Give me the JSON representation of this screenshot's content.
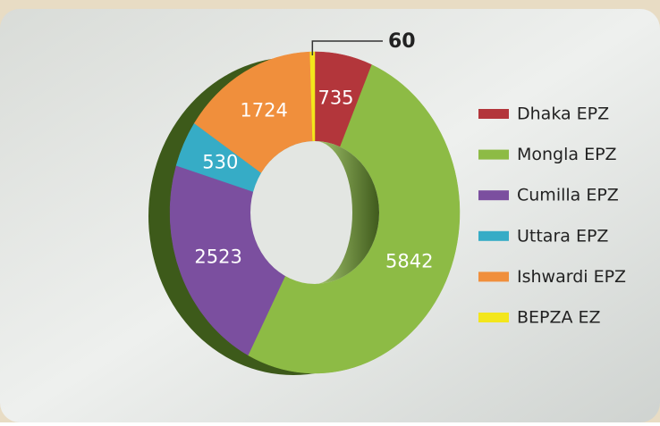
{
  "chart_data": {
    "type": "donut",
    "categories": [
      "Dhaka EPZ",
      "Mongla EPZ",
      "Cumilla EPZ",
      "Uttara EPZ",
      "Ishwardi EPZ",
      "BEPZA EZ"
    ],
    "values": [
      735,
      5842,
      2523,
      530,
      1724,
      60
    ],
    "colors": [
      "#b3363b",
      "#8dbb45",
      "#7b4f9f",
      "#36acc6",
      "#f08f3c",
      "#f3e61c"
    ],
    "legend": "right"
  }
}
